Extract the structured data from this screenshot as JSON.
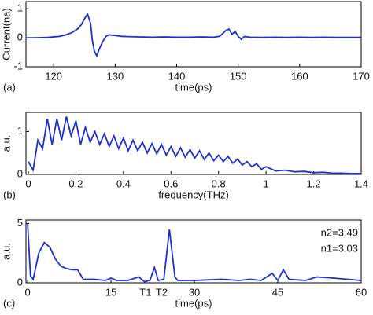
{
  "chart_data": [
    {
      "type": "line",
      "panel_label": "(a)",
      "xlabel": "time(ps)",
      "ylabel": "Current(na)",
      "color": "#1f2fd0",
      "xlim": [
        115.5,
        170
      ],
      "ylim": [
        -1,
        1.25
      ],
      "xticks": [
        120,
        130,
        140,
        150,
        160,
        170
      ],
      "yticks": [
        -1,
        0,
        1
      ],
      "x": [
        115.5,
        117,
        119,
        121,
        122,
        123,
        124,
        124.5,
        125,
        125.5,
        126,
        126.3,
        126.6,
        127,
        127.5,
        128,
        128.5,
        129,
        130,
        131,
        132,
        134,
        136,
        138,
        140,
        142,
        144,
        146,
        147,
        147.5,
        148,
        148.5,
        149,
        149.5,
        150,
        150.5,
        151,
        152,
        154,
        156,
        158,
        160,
        162,
        164,
        166,
        168,
        170
      ],
      "values": [
        0,
        0,
        0.01,
        0.05,
        0.1,
        0.18,
        0.32,
        0.45,
        0.65,
        0.82,
        0.5,
        -0.1,
        -0.45,
        -0.62,
        -0.35,
        -0.12,
        0.05,
        0.1,
        0.08,
        0.05,
        0.04,
        0.03,
        0.02,
        0.03,
        0.02,
        0.02,
        0.03,
        0.02,
        0.05,
        0.15,
        0.25,
        0.3,
        0.12,
        0.22,
        0.05,
        -0.05,
        0.04,
        0.02,
        0.01,
        0.02,
        0.01,
        0.02,
        0.01,
        0.02,
        0.01,
        0.01,
        0.01
      ]
    },
    {
      "type": "line",
      "panel_label": "(b)",
      "xlabel": "frequency(THz)",
      "ylabel": "a.u.",
      "color": "#1f2fd0",
      "xlim": [
        -0.01,
        1.4
      ],
      "ylim": [
        0,
        1.45
      ],
      "xticks": [
        0,
        0.2,
        0.4,
        0.6,
        0.8,
        1,
        1.2,
        1.4
      ],
      "yticks": [
        0,
        1
      ],
      "x": [
        0,
        0.02,
        0.04,
        0.06,
        0.08,
        0.1,
        0.12,
        0.14,
        0.16,
        0.18,
        0.2,
        0.22,
        0.24,
        0.26,
        0.28,
        0.3,
        0.32,
        0.34,
        0.36,
        0.38,
        0.4,
        0.42,
        0.44,
        0.46,
        0.48,
        0.5,
        0.52,
        0.54,
        0.56,
        0.58,
        0.6,
        0.62,
        0.64,
        0.66,
        0.68,
        0.7,
        0.72,
        0.74,
        0.76,
        0.78,
        0.8,
        0.82,
        0.84,
        0.86,
        0.88,
        0.9,
        0.92,
        0.94,
        0.96,
        0.98,
        1,
        1.04,
        1.08,
        1.12,
        1.16,
        1.2,
        1.24,
        1.28,
        1.32,
        1.36,
        1.4
      ],
      "values": [
        0.3,
        0.1,
        0.8,
        0.6,
        1.3,
        0.7,
        1.3,
        0.8,
        1.35,
        0.9,
        1.25,
        0.7,
        1.1,
        0.75,
        1.0,
        0.7,
        0.95,
        0.65,
        0.9,
        0.6,
        0.85,
        0.55,
        0.8,
        0.55,
        0.75,
        0.5,
        0.72,
        0.48,
        0.7,
        0.45,
        0.65,
        0.42,
        0.62,
        0.4,
        0.58,
        0.38,
        0.55,
        0.35,
        0.5,
        0.32,
        0.45,
        0.3,
        0.42,
        0.26,
        0.36,
        0.22,
        0.3,
        0.18,
        0.25,
        0.12,
        0.18,
        0.08,
        0.1,
        0.06,
        0.07,
        0.04,
        0.05,
        0.03,
        0.03,
        0.02,
        0.02
      ]
    },
    {
      "type": "line",
      "panel_label": "(c)",
      "xlabel": "time(ps)",
      "ylabel": "a.u.",
      "color": "#1f2fd0",
      "xlim": [
        -0.3,
        60
      ],
      "ylim": [
        0,
        5.3
      ],
      "xticks": [
        0,
        15,
        30,
        45,
        60
      ],
      "yticks": [
        0,
        5
      ],
      "annotations": [
        "n2=3.49",
        "n1=3.03"
      ],
      "markers": [
        "T1",
        "T2"
      ],
      "marker_x": [
        21.2,
        24.1
      ],
      "x": [
        0,
        0.5,
        1,
        2,
        3,
        4,
        5,
        6,
        7,
        8,
        9,
        10,
        12,
        14,
        15,
        16,
        18,
        20,
        21,
        22,
        22.8,
        23.5,
        24.5,
        25.5,
        26.5,
        27,
        30,
        35,
        38,
        40,
        42,
        44,
        45,
        46,
        47,
        50,
        52,
        55,
        60
      ],
      "values": [
        5,
        0.6,
        0.3,
        2.5,
        3.4,
        3,
        2,
        1.4,
        1.2,
        1.1,
        1.1,
        0.3,
        0.3,
        0.2,
        0.4,
        0.2,
        0.2,
        0.5,
        0.1,
        0.2,
        1.3,
        0.2,
        0.3,
        4.5,
        0.5,
        0.2,
        0.2,
        0.3,
        0.2,
        0.3,
        0.2,
        0.8,
        0.2,
        1.1,
        0.3,
        0.2,
        0.5,
        0.4,
        0.2
      ]
    }
  ]
}
